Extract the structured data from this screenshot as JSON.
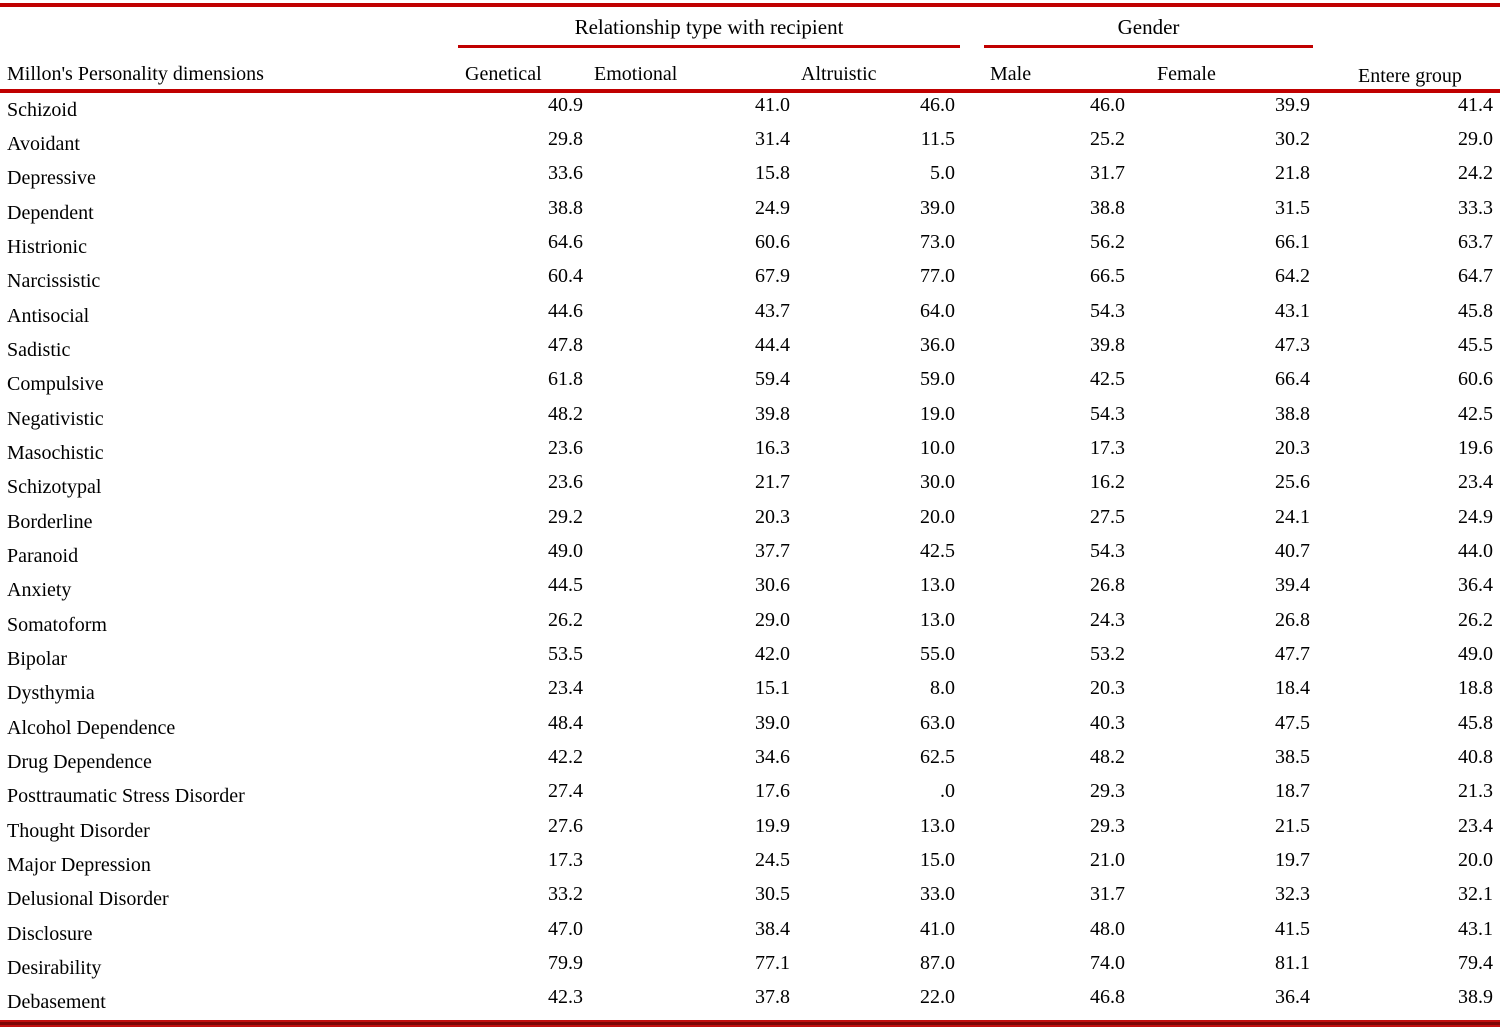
{
  "colors": {
    "rule_red": "#c00000",
    "text": "#000000",
    "background": "#ffffff"
  },
  "table": {
    "row_header": "Millon's Personality dimensions",
    "spanners": [
      {
        "label": "Relationship type with recipient",
        "columns": [
          "Genetical",
          "Emotional",
          "Altruistic"
        ]
      },
      {
        "label": "Gender",
        "columns": [
          "Male",
          "Female"
        ]
      }
    ],
    "columns": [
      "Genetical",
      "Emotional",
      "Altruistic",
      "Male",
      "Female",
      "Entere group"
    ],
    "rows": [
      {
        "label": "Schizoid",
        "values": [
          "40.9",
          "41.0",
          "46.0",
          "46.0",
          "39.9",
          "41.4"
        ]
      },
      {
        "label": "Avoidant",
        "values": [
          "29.8",
          "31.4",
          "11.5",
          "25.2",
          "30.2",
          "29.0"
        ]
      },
      {
        "label": "Depressive",
        "values": [
          "33.6",
          "15.8",
          "5.0",
          "31.7",
          "21.8",
          "24.2"
        ]
      },
      {
        "label": "Dependent",
        "values": [
          "38.8",
          "24.9",
          "39.0",
          "38.8",
          "31.5",
          "33.3"
        ]
      },
      {
        "label": "Histrionic",
        "values": [
          "64.6",
          "60.6",
          "73.0",
          "56.2",
          "66.1",
          "63.7"
        ]
      },
      {
        "label": "Narcissistic",
        "values": [
          "60.4",
          "67.9",
          "77.0",
          "66.5",
          "64.2",
          "64.7"
        ]
      },
      {
        "label": "Antisocial",
        "values": [
          "44.6",
          "43.7",
          "64.0",
          "54.3",
          "43.1",
          "45.8"
        ]
      },
      {
        "label": "Sadistic",
        "values": [
          "47.8",
          "44.4",
          "36.0",
          "39.8",
          "47.3",
          "45.5"
        ]
      },
      {
        "label": "Compulsive",
        "values": [
          "61.8",
          "59.4",
          "59.0",
          "42.5",
          "66.4",
          "60.6"
        ]
      },
      {
        "label": "Negativistic",
        "values": [
          "48.2",
          "39.8",
          "19.0",
          "54.3",
          "38.8",
          "42.5"
        ]
      },
      {
        "label": "Masochistic",
        "values": [
          "23.6",
          "16.3",
          "10.0",
          "17.3",
          "20.3",
          "19.6"
        ]
      },
      {
        "label": "Schizotypal",
        "values": [
          "23.6",
          "21.7",
          "30.0",
          "16.2",
          "25.6",
          "23.4"
        ]
      },
      {
        "label": "Borderline",
        "values": [
          "29.2",
          "20.3",
          "20.0",
          "27.5",
          "24.1",
          "24.9"
        ]
      },
      {
        "label": "Paranoid",
        "values": [
          "49.0",
          "37.7",
          "42.5",
          "54.3",
          "40.7",
          "44.0"
        ]
      },
      {
        "label": "Anxiety",
        "values": [
          "44.5",
          "30.6",
          "13.0",
          "26.8",
          "39.4",
          "36.4"
        ]
      },
      {
        "label": "Somatoform",
        "values": [
          "26.2",
          "29.0",
          "13.0",
          "24.3",
          "26.8",
          "26.2"
        ]
      },
      {
        "label": "Bipolar",
        "values": [
          "53.5",
          "42.0",
          "55.0",
          "53.2",
          "47.7",
          "49.0"
        ]
      },
      {
        "label": "Dysthymia",
        "values": [
          "23.4",
          "15.1",
          "8.0",
          "20.3",
          "18.4",
          "18.8"
        ]
      },
      {
        "label": "Alcohol Dependence",
        "values": [
          "48.4",
          "39.0",
          "63.0",
          "40.3",
          "47.5",
          "45.8"
        ]
      },
      {
        "label": "Drug Dependence",
        "values": [
          "42.2",
          "34.6",
          "62.5",
          "48.2",
          "38.5",
          "40.8"
        ]
      },
      {
        "label": "Posttraumatic Stress Disorder",
        "values": [
          "27.4",
          "17.6",
          ".0",
          "29.3",
          "18.7",
          "21.3"
        ]
      },
      {
        "label": "Thought Disorder",
        "values": [
          "27.6",
          "19.9",
          "13.0",
          "29.3",
          "21.5",
          "23.4"
        ]
      },
      {
        "label": "Major Depression",
        "values": [
          "17.3",
          "24.5",
          "15.0",
          "21.0",
          "19.7",
          "20.0"
        ]
      },
      {
        "label": "Delusional Disorder",
        "values": [
          "33.2",
          "30.5",
          "33.0",
          "31.7",
          "32.3",
          "32.1"
        ]
      },
      {
        "label": "Disclosure",
        "values": [
          "47.0",
          "38.4",
          "41.0",
          "48.0",
          "41.5",
          "43.1"
        ]
      },
      {
        "label": "Desirability",
        "values": [
          "79.9",
          "77.1",
          "87.0",
          "74.0",
          "81.1",
          "79.4"
        ]
      },
      {
        "label": "Debasement",
        "values": [
          "42.3",
          "37.8",
          "22.0",
          "46.8",
          "36.4",
          "38.9"
        ]
      }
    ]
  }
}
